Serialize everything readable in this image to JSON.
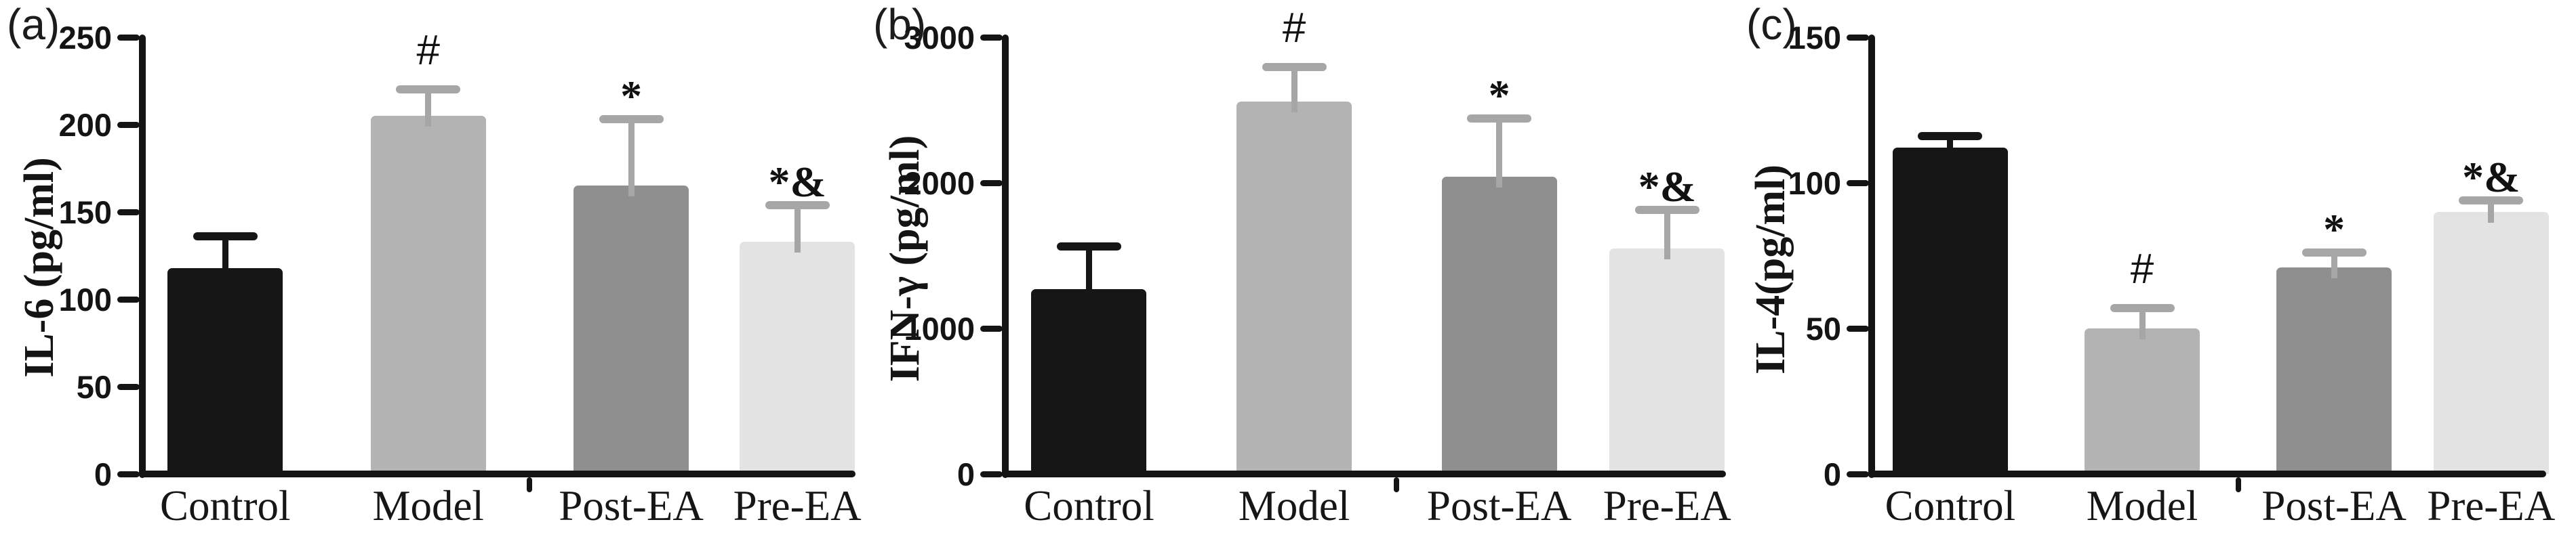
{
  "figure_background": "#ffffff",
  "chart_data": [
    {
      "panel_label": "(a)",
      "type": "bar",
      "title": "",
      "xlabel": "",
      "ylabel": "IL-6 (pg/ml)",
      "categories": [
        "Control",
        "Model",
        "Post-EA",
        "Pre-EA"
      ],
      "values": [
        118,
        205,
        165,
        133
      ],
      "errors_up": [
        18,
        15,
        38,
        21
      ],
      "annotations": [
        "",
        "#",
        "*",
        "*&"
      ],
      "ylim": [
        0,
        250
      ],
      "yticks": [
        0,
        50,
        100,
        150,
        200,
        250
      ],
      "grid": "off",
      "legend": "none",
      "bar_colors": [
        "#161616",
        "#b3b3b3",
        "#8f8f8f",
        "#e3e3e3"
      ],
      "error_colors": [
        "#161616",
        "#a6a6a6",
        "#a6a6a6",
        "#a6a6a6"
      ]
    },
    {
      "panel_label": "(b)",
      "type": "bar",
      "title": "",
      "xlabel": "",
      "ylabel": "IFN-γ  (pg/ml)",
      "categories": [
        "Control",
        "Model",
        "Post-EA",
        "Pre-EA"
      ],
      "values": [
        1270,
        2560,
        2040,
        1550
      ],
      "errors_up": [
        295,
        235,
        400,
        265
      ],
      "annotations": [
        "",
        "#",
        "*",
        "*&"
      ],
      "ylim": [
        0,
        3000
      ],
      "yticks": [
        0,
        1000,
        2000,
        3000
      ],
      "grid": "off",
      "legend": "none",
      "bar_colors": [
        "#161616",
        "#b3b3b3",
        "#8f8f8f",
        "#e3e3e3"
      ],
      "error_colors": [
        "#161616",
        "#a6a6a6",
        "#a6a6a6",
        "#a6a6a6"
      ]
    },
    {
      "panel_label": "(c)",
      "type": "bar",
      "title": "",
      "xlabel": "",
      "ylabel": "IL-4(pg/ml)",
      "categories": [
        "Control",
        "Model",
        "Post-EA",
        "Pre-EA"
      ],
      "values": [
        112,
        50,
        71,
        90
      ],
      "errors_up": [
        4,
        7,
        5,
        4
      ],
      "annotations": [
        "",
        "#",
        "*",
        "*&"
      ],
      "ylim": [
        0,
        150
      ],
      "yticks": [
        0,
        50,
        100,
        150
      ],
      "grid": "off",
      "legend": "none",
      "bar_colors": [
        "#161616",
        "#b3b3b3",
        "#8f8f8f",
        "#e3e3e3"
      ],
      "error_colors": [
        "#161616",
        "#a6a6a6",
        "#a6a6a6",
        "#a6a6a6"
      ]
    }
  ]
}
